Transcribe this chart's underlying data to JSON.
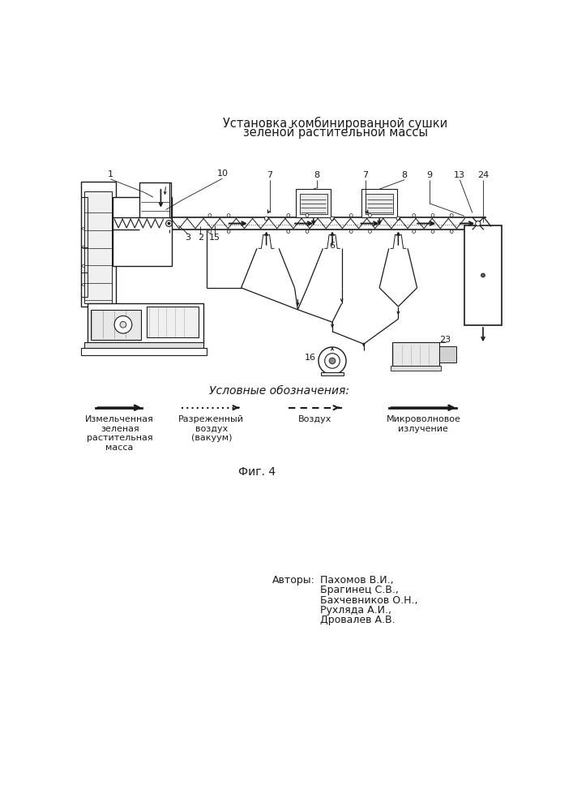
{
  "title_line1": "Установка комбинированной сушки",
  "title_line2": "зеленой растительной массы",
  "legend_title": "Условные обозначения:",
  "fig_caption": "Фиг. 4",
  "authors_label": "Авторы:",
  "authors": [
    "Пахомов В.И.,",
    "Брагинец С.В.,",
    "Бахчевников О.Н.,",
    "Рухляда А.И.,",
    "Дровалев А.В."
  ],
  "bg_color": "#ffffff",
  "line_color": "#1a1a1a",
  "title_fontsize": 10.5,
  "label_fontsize": 9,
  "small_fontsize": 8,
  "legend_label1": "Измельченная\nзеленая\nрастительная\nмасса",
  "legend_label2": "Разреженный\nвоздух\n(вакуум)",
  "legend_label3": "Воздух",
  "legend_label4": "Микроволновое\nизлучение"
}
